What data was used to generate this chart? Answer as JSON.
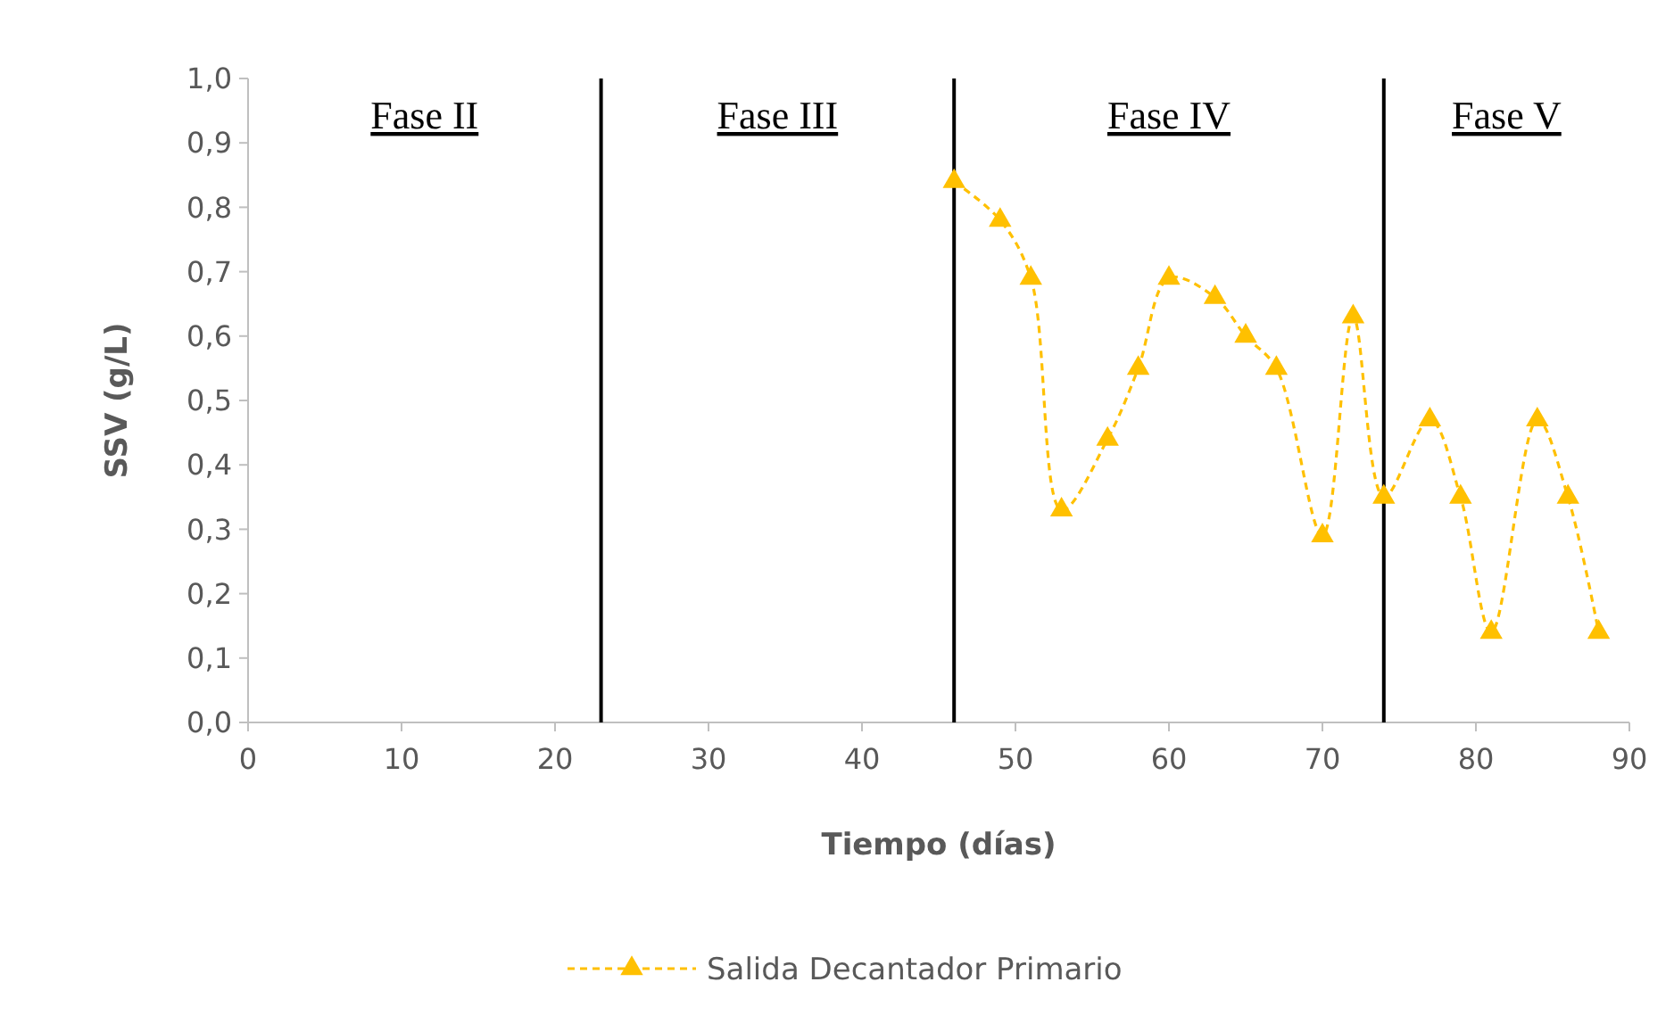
{
  "chart_data": {
    "type": "line",
    "xlabel": "Tiempo (días)",
    "ylabel": "SSV (g/L)",
    "xlim": [
      0,
      90
    ],
    "xticks": [
      0,
      10,
      20,
      30,
      40,
      50,
      60,
      70,
      80,
      90
    ],
    "ylim": [
      0,
      1
    ],
    "yticks": [
      {
        "value": 0,
        "label": "0,0"
      },
      {
        "value": 0.1,
        "label": "0,1"
      },
      {
        "value": 0.2,
        "label": "0,2"
      },
      {
        "value": 0.3,
        "label": "0,3"
      },
      {
        "value": 0.4,
        "label": "0,4"
      },
      {
        "value": 0.5,
        "label": "0,5"
      },
      {
        "value": 0.6,
        "label": "0,6"
      },
      {
        "value": 0.7,
        "label": "0,7"
      },
      {
        "value": 0.8,
        "label": "0,8"
      },
      {
        "value": 0.9,
        "label": "0,9"
      },
      {
        "value": 1,
        "label": "1,0"
      }
    ],
    "x": [
      46,
      49,
      51,
      53,
      56,
      58,
      60,
      63,
      65,
      67,
      70,
      72,
      74,
      77,
      79,
      81,
      84,
      86,
      88
    ],
    "series": [
      {
        "name": "Salida Decantador Primario",
        "color": "#ffc000",
        "values": [
          0.84,
          0.78,
          0.69,
          0.33,
          0.44,
          0.55,
          0.69,
          0.66,
          0.6,
          0.55,
          0.29,
          0.63,
          0.35,
          0.47,
          0.35,
          0.14,
          0.47,
          0.35,
          0.14
        ]
      }
    ],
    "marker": "triangle",
    "line_style": "dashed",
    "grid": false,
    "legend": "bottom",
    "ref_lines": [
      {
        "axis": "x",
        "value": 23,
        "color": "#000000"
      },
      {
        "axis": "x",
        "value": 46,
        "color": "#000000"
      },
      {
        "axis": "x",
        "value": 74,
        "color": "#000000"
      }
    ],
    "annotations": [
      "Fase II",
      "Fase III",
      "Fase IV",
      "Fase V"
    ]
  }
}
